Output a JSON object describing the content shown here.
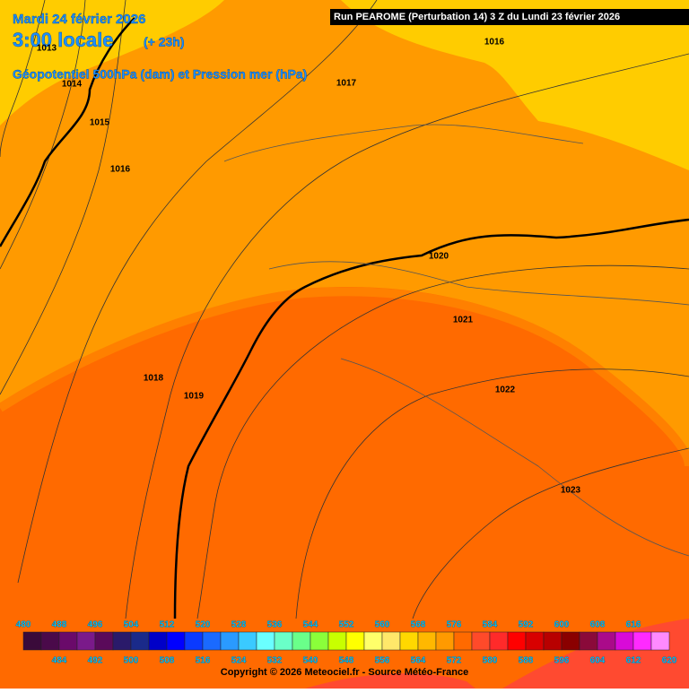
{
  "header": {
    "date": "Mardi 24 février 2026",
    "time": "3:00 locale",
    "lead": "(+ 23h)",
    "field": "Géopotentiel 500hPa (dam) et Pression mer (hPa)",
    "run": "Run PEAROME (Perturbation 14) 3 Z du Lundi 23 février 2026"
  },
  "isobar_labels": [
    1013,
    1014,
    1015,
    1016,
    1016,
    1017,
    1018,
    1019,
    1020,
    1021,
    1022,
    1023
  ],
  "legend": {
    "levels": [
      480,
      484,
      488,
      492,
      496,
      500,
      504,
      508,
      512,
      516,
      520,
      524,
      528,
      532,
      536,
      540,
      544,
      548,
      552,
      556,
      560,
      564,
      568,
      572,
      576,
      580,
      584,
      588,
      592,
      596,
      600,
      604,
      608,
      612,
      616,
      620
    ],
    "colors": [
      "#3a0a3a",
      "#4a0a4a",
      "#6a0a6a",
      "#7a1a8a",
      "#5a0a5a",
      "#2a1a6a",
      "#1a2a8a",
      "#0000c8",
      "#0000ff",
      "#0a3aff",
      "#1a6aff",
      "#2a9aff",
      "#3acaff",
      "#6affff",
      "#6affc8",
      "#6aff8a",
      "#8aff3a",
      "#c8ff00",
      "#ffff00",
      "#ffff6a",
      "#ffe86a",
      "#ffd800",
      "#ffb800",
      "#ff9a00",
      "#ff6a00",
      "#ff4a2a",
      "#ff2a2a",
      "#ff0000",
      "#d80000",
      "#b80000",
      "#8a0000",
      "#8a0a3a",
      "#aa0a8a",
      "#d80ad8",
      "#ff2aff",
      "#ff8aff"
    ]
  },
  "copyright": "Copyright © 2026 Meteociel.fr - Source Météo-France"
}
